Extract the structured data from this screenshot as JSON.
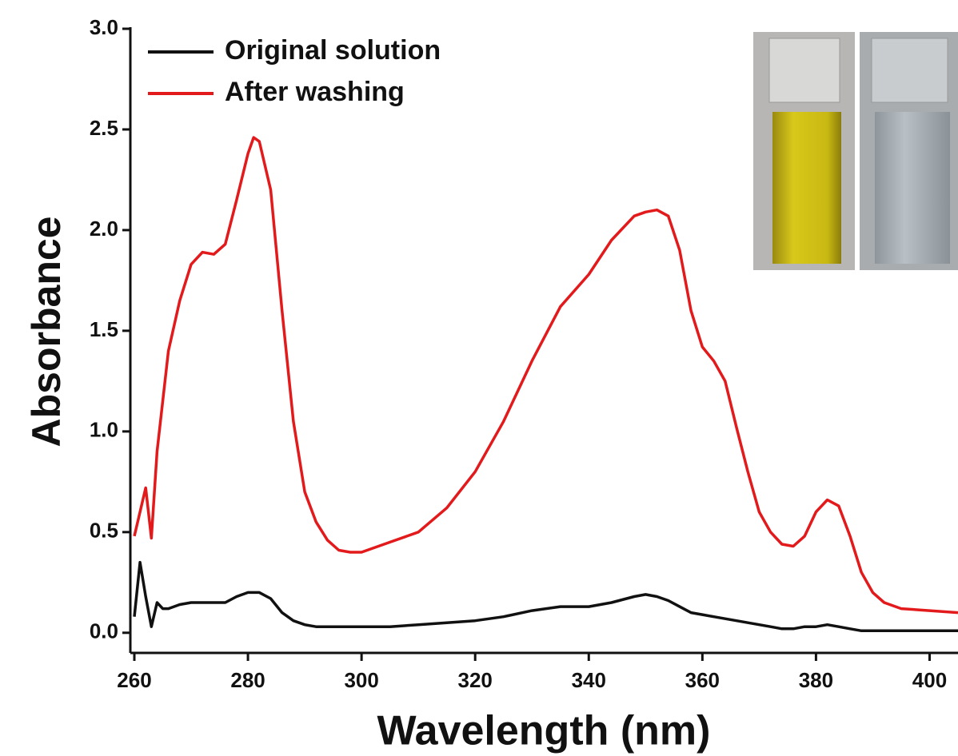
{
  "chart_data": {
    "type": "line",
    "x_label": "Wavelength (nm)",
    "y_label": "Absorbance",
    "x": [
      260,
      261,
      262,
      263,
      264,
      265,
      266,
      268,
      270,
      272,
      274,
      276,
      278,
      280,
      281,
      282,
      284,
      286,
      288,
      290,
      292,
      294,
      296,
      298,
      300,
      305,
      310,
      315,
      320,
      325,
      330,
      335,
      340,
      344,
      348,
      350,
      352,
      354,
      356,
      358,
      360,
      362,
      364,
      366,
      368,
      370,
      372,
      374,
      376,
      378,
      380,
      382,
      384,
      386,
      388,
      390,
      392,
      395,
      400,
      405
    ],
    "series": [
      {
        "name": "Original solution",
        "color": "#111111",
        "values": [
          0.08,
          0.35,
          0.18,
          0.03,
          0.15,
          0.12,
          0.12,
          0.14,
          0.15,
          0.15,
          0.15,
          0.15,
          0.18,
          0.2,
          0.2,
          0.2,
          0.17,
          0.1,
          0.06,
          0.04,
          0.03,
          0.03,
          0.03,
          0.03,
          0.03,
          0.03,
          0.04,
          0.05,
          0.06,
          0.08,
          0.11,
          0.13,
          0.13,
          0.15,
          0.18,
          0.19,
          0.18,
          0.16,
          0.13,
          0.1,
          0.09,
          0.08,
          0.07,
          0.06,
          0.05,
          0.04,
          0.03,
          0.02,
          0.02,
          0.03,
          0.03,
          0.04,
          0.03,
          0.02,
          0.01,
          0.01,
          0.01,
          0.01,
          0.01,
          0.01
        ]
      },
      {
        "name": "After washing",
        "color": "#e31a1c",
        "values": [
          0.48,
          0.6,
          0.72,
          0.47,
          0.9,
          1.15,
          1.4,
          1.65,
          1.83,
          1.89,
          1.88,
          1.93,
          2.15,
          2.38,
          2.46,
          2.44,
          2.2,
          1.6,
          1.05,
          0.7,
          0.55,
          0.46,
          0.41,
          0.4,
          0.4,
          0.45,
          0.5,
          0.62,
          0.8,
          1.05,
          1.35,
          1.62,
          1.78,
          1.95,
          2.07,
          2.09,
          2.1,
          2.07,
          1.9,
          1.6,
          1.42,
          1.35,
          1.25,
          1.02,
          0.8,
          0.6,
          0.5,
          0.44,
          0.43,
          0.48,
          0.6,
          0.66,
          0.63,
          0.48,
          0.3,
          0.2,
          0.15,
          0.12,
          0.11,
          0.1
        ]
      }
    ],
    "xlim": [
      260,
      405
    ],
    "ylim": [
      -0.1,
      3.0
    ],
    "xticks": [
      260,
      280,
      300,
      320,
      340,
      360,
      380,
      400
    ],
    "yticks": [
      {
        "value": 0,
        "label": "0.0"
      },
      0.5,
      {
        "value": 1,
        "label": "1.0"
      },
      1.5,
      {
        "value": 2,
        "label": "2.0"
      },
      2.5,
      {
        "value": 3,
        "label": "3.0"
      }
    ],
    "legend": "upper left",
    "grid": false
  }
}
